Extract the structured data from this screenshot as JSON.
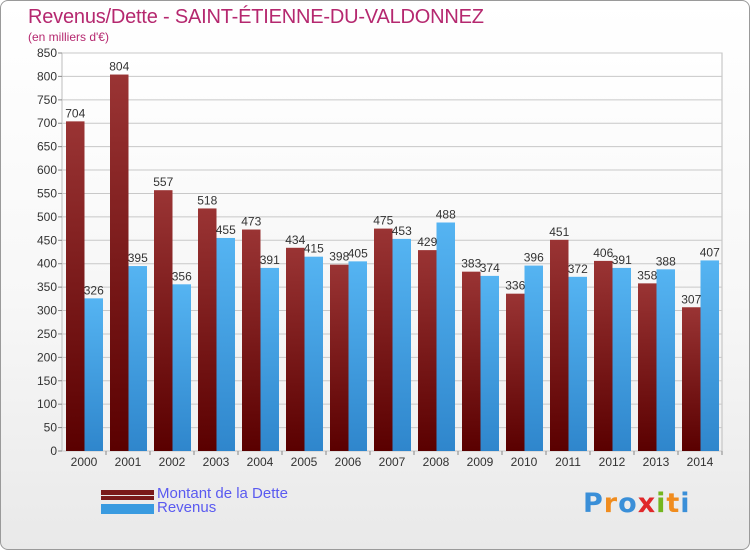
{
  "header": {
    "title": "Revenus/Dette - SAINT-ÉTIENNE-DU-VALDONNEZ",
    "subtitle": "(en milliers d'€)"
  },
  "colors": {
    "title": "#b5286f",
    "dette": "#8b2020",
    "revenus": "#3a9be0",
    "legend_text": "#5a5af0"
  },
  "chart_data": {
    "type": "bar",
    "categories": [
      "2000",
      "2001",
      "2002",
      "2003",
      "2004",
      "2005",
      "2006",
      "2007",
      "2008",
      "2009",
      "2010",
      "2011",
      "2012",
      "2013",
      "2014"
    ],
    "series": [
      {
        "name": "Montant de la Dette",
        "values": [
          704,
          804,
          557,
          518,
          473,
          434,
          398,
          475,
          429,
          383,
          336,
          451,
          406,
          358,
          307
        ]
      },
      {
        "name": "Revenus",
        "values": [
          326,
          395,
          356,
          455,
          391,
          415,
          405,
          453,
          488,
          374,
          396,
          372,
          391,
          388,
          407
        ]
      }
    ],
    "yticks": [
      0,
      50,
      100,
      150,
      200,
      250,
      300,
      350,
      400,
      450,
      500,
      550,
      600,
      650,
      700,
      750,
      800,
      850
    ],
    "ylim": [
      0,
      850
    ],
    "grid": true,
    "legend_position": "bottom-left"
  },
  "legend": {
    "dette_label": "Montant de la Dette",
    "revenus_label": "Revenus"
  },
  "logo": {
    "letters": [
      "P",
      "r",
      "o",
      "x",
      "i",
      "t",
      "i"
    ],
    "colors": [
      "#3a8fd8",
      "#f08c1e",
      "#3a8fd8",
      "#e0282a",
      "#74b61f",
      "#f08c1e",
      "#3a8fd8"
    ]
  }
}
